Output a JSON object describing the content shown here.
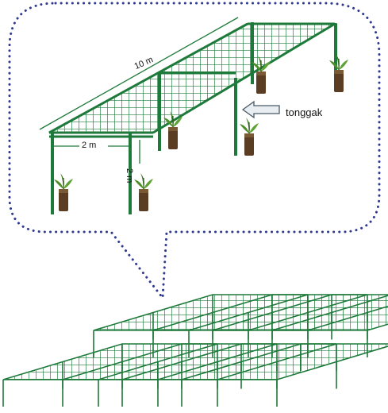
{
  "labels": {
    "length": "10 m",
    "width": "2 m",
    "height": "2 m",
    "post": "tonggak"
  },
  "colors": {
    "frame": "#1e7a3a",
    "frame_dark": "#125a28",
    "callout_dots": "#2f3a8f",
    "arrow_fill": "#e8eef2",
    "arrow_stroke": "#4a5a66",
    "pot": "#5a3d22",
    "leaf": "#4f8f2a"
  },
  "icons": [
    "arrow-right-icon",
    "seedling-pot-icon"
  ]
}
